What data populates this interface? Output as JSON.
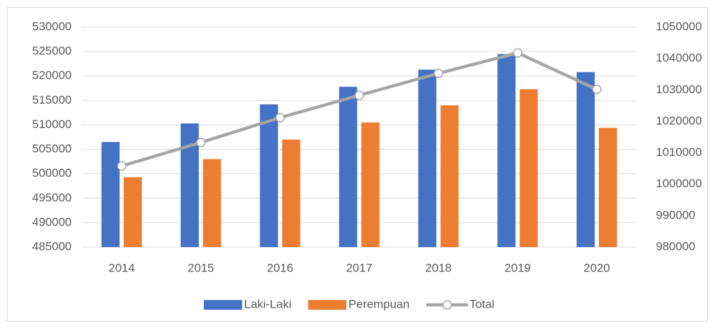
{
  "chart_data": {
    "type": "bar-line",
    "categories": [
      "2014",
      "2015",
      "2016",
      "2017",
      "2018",
      "2019",
      "2020"
    ],
    "series": [
      {
        "name": "Laki-Laki",
        "color": "#4472c4",
        "type": "bar",
        "values": [
          506500,
          510300,
          514200,
          517800,
          521300,
          524500,
          520800
        ]
      },
      {
        "name": "Perempuan",
        "color": "#ed7d31",
        "type": "bar",
        "values": [
          499300,
          503000,
          507000,
          510500,
          514000,
          517300,
          509400
        ]
      },
      {
        "name": "Total",
        "color": "#a5a5a5",
        "type": "line",
        "axis": "y2",
        "values": [
          1005800,
          1013300,
          1021200,
          1028300,
          1035300,
          1041800,
          1030200
        ]
      }
    ],
    "ylim": [
      485000,
      530000
    ],
    "yticks": [
      485000,
      490000,
      495000,
      500000,
      505000,
      510000,
      515000,
      520000,
      525000,
      530000
    ],
    "y2lim": [
      980000,
      1050000
    ],
    "y2ticks": [
      980000,
      990000,
      1000000,
      1010000,
      1020000,
      1030000,
      1040000,
      1050000
    ],
    "grid": true,
    "legend": "bottom"
  }
}
